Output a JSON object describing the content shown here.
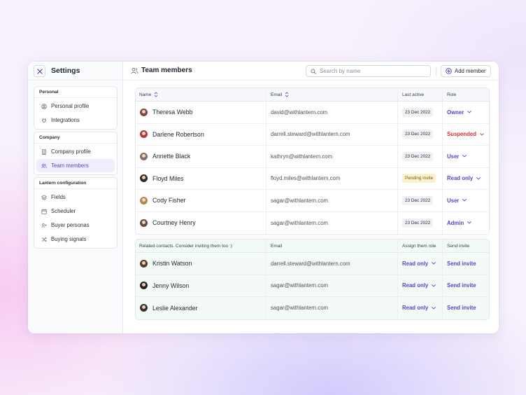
{
  "sidebar": {
    "title": "Settings",
    "groups": [
      {
        "label": "Personal",
        "items": [
          {
            "label": "Personal profile",
            "icon": "user-circle-icon"
          },
          {
            "label": "Integrations",
            "icon": "plug-icon"
          }
        ]
      },
      {
        "label": "Company",
        "items": [
          {
            "label": "Company profile",
            "icon": "building-icon"
          },
          {
            "label": "Team members",
            "icon": "users-icon",
            "active": true
          }
        ]
      },
      {
        "label": "Lantern configuration",
        "items": [
          {
            "label": "Fields",
            "icon": "layers-icon"
          },
          {
            "label": "Scheduler",
            "icon": "calendar-icon"
          },
          {
            "label": "Buyer personas",
            "icon": "user-plus-icon"
          },
          {
            "label": "Buying signals",
            "icon": "shuffle-icon"
          }
        ]
      }
    ]
  },
  "header": {
    "title": "Team members",
    "search_placeholder": "Search by name",
    "add_label": "Add member"
  },
  "members": {
    "columns": {
      "name": "Name",
      "email": "Email",
      "last_active": "Last active",
      "role": "Role"
    },
    "rows": [
      {
        "name": "Theresa Webb",
        "email": "david@withlantern.com",
        "last_active": "23 Dec 2022",
        "role": "Owner",
        "status": "date",
        "avatar_color": "#7a4a3a"
      },
      {
        "name": "Darlene Robertson",
        "email": "darrell.steward@withlantern.com",
        "last_active": "23 Dec 2022",
        "role": "Suspended",
        "status": "date",
        "avatar_color": "#b23a3a"
      },
      {
        "name": "Annette Black",
        "email": "kathryn@withlantern.com",
        "last_active": "23 Dec 2022",
        "role": "User",
        "status": "date",
        "avatar_color": "#8a6a6a"
      },
      {
        "name": "Floyd Miles",
        "email": "floyd.miles@withlantern.com",
        "last_active": "Pending invite",
        "role": "Read only",
        "status": "pending",
        "avatar_color": "#3a2a2a"
      },
      {
        "name": "Cody Fisher",
        "email": "sagar@withlantern.com",
        "last_active": "23 Dec 2022",
        "role": "User",
        "status": "date",
        "avatar_color": "#b08a4a"
      },
      {
        "name": "Courtney Henry",
        "email": "sagar@withlantern.com",
        "last_active": "23 Dec 2022",
        "role": "Admin",
        "status": "date",
        "avatar_color": "#6a4a40"
      }
    ]
  },
  "related": {
    "columns": {
      "name": "Related contacts. Consider inviting them too :)",
      "email": "Email",
      "assign": "Assign them role",
      "invite": "Send invite"
    },
    "rows": [
      {
        "name": "Kristin Watson",
        "email": "darrell.steward@withlantern.com",
        "role": "Read only",
        "invite": "Send invite",
        "avatar_color": "#5a3a30"
      },
      {
        "name": "Jenny Wilson",
        "email": "sagar@withlantern.com",
        "role": "Read only",
        "invite": "Send invite",
        "avatar_color": "#2a2020"
      },
      {
        "name": "Leslie Alexander",
        "email": "sagar@withlantern.com",
        "role": "Read only",
        "invite": "Send invite",
        "avatar_color": "#3a3030"
      }
    ]
  },
  "colors": {
    "accent": "#5b3fd0",
    "danger": "#d53035",
    "pending": "#fdf0cc"
  }
}
